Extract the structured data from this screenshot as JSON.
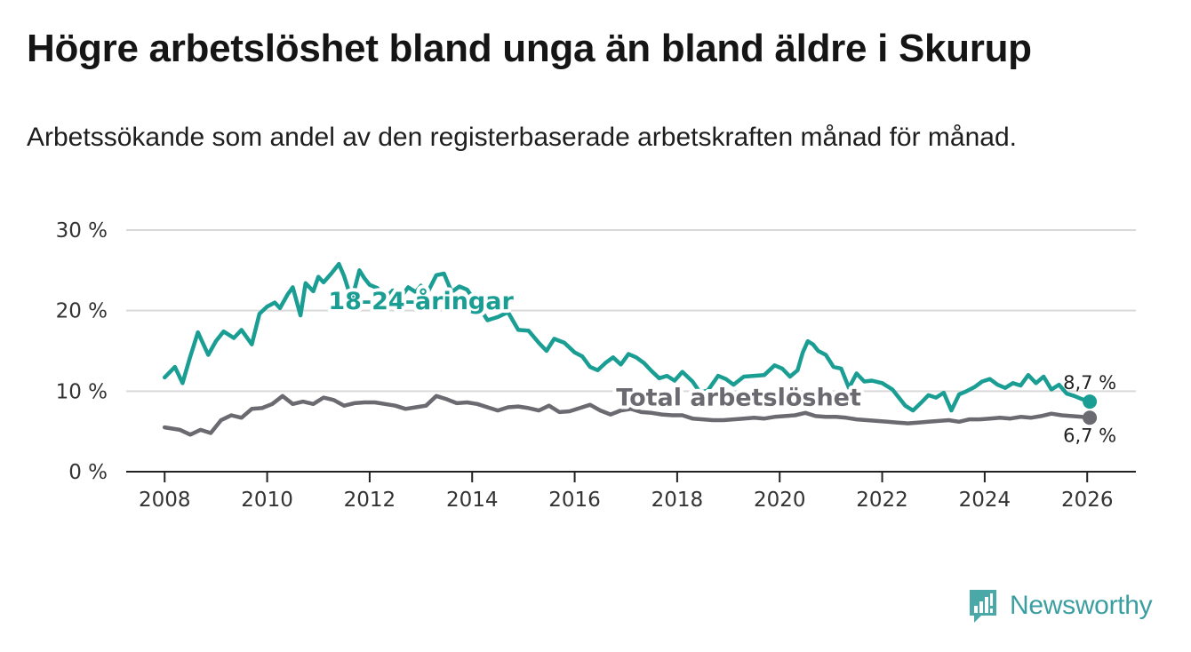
{
  "header": {
    "title": "Högre arbetslöshet bland unga än bland äldre i Skurup",
    "subtitle": "Arbetssökande som andel av den registerbaserade arbetskraften månad för månad."
  },
  "brand": {
    "name": "Newsworthy",
    "icon": "newsworthy-logo-icon",
    "color": "#3b9ea0"
  },
  "chart_data": {
    "type": "line",
    "title": "Högre arbetslöshet bland unga än bland äldre i Skurup",
    "xlabel": "",
    "ylabel": "",
    "xlim": [
      2007.25,
      2026.95
    ],
    "ylim": [
      0,
      30
    ],
    "grid": true,
    "y_ticks": [
      {
        "value": 0,
        "label": "0 %"
      },
      {
        "value": 10,
        "label": "10 %"
      },
      {
        "value": 20,
        "label": "20 %"
      },
      {
        "value": 30,
        "label": "30 %"
      }
    ],
    "x_ticks": [
      {
        "value": 2008,
        "label": "2008"
      },
      {
        "value": 2010,
        "label": "2010"
      },
      {
        "value": 2012,
        "label": "2012"
      },
      {
        "value": 2014,
        "label": "2014"
      },
      {
        "value": 2016,
        "label": "2016"
      },
      {
        "value": 2018,
        "label": "2018"
      },
      {
        "value": 2020,
        "label": "2020"
      },
      {
        "value": 2022,
        "label": "2022"
      },
      {
        "value": 2024,
        "label": "2024"
      },
      {
        "value": 2026,
        "label": "2026"
      }
    ],
    "series": [
      {
        "name": "18-24-åringar",
        "label": "18-24-åringar",
        "color": "#1a9e94",
        "label_anchor": [
          2013.0,
          20.2
        ],
        "end_label": "8,7 %",
        "x": [
          2008.0,
          2008.2,
          2008.35,
          2008.5,
          2008.65,
          2008.85,
          2009.0,
          2009.15,
          2009.35,
          2009.5,
          2009.7,
          2009.85,
          2010.0,
          2010.15,
          2010.25,
          2010.4,
          2010.5,
          2010.65,
          2010.75,
          2010.9,
          2011.0,
          2011.1,
          2011.25,
          2011.4,
          2011.5,
          2011.65,
          2011.8,
          2011.9,
          2012.0,
          2012.15,
          2012.3,
          2012.45,
          2012.6,
          2012.75,
          2012.9,
          2013.0,
          2013.15,
          2013.3,
          2013.45,
          2013.6,
          2013.75,
          2013.9,
          2014.1,
          2014.3,
          2014.5,
          2014.7,
          2014.9,
          2015.1,
          2015.3,
          2015.45,
          2015.6,
          2015.8,
          2016.0,
          2016.15,
          2016.3,
          2016.45,
          2016.6,
          2016.75,
          2016.9,
          2017.05,
          2017.2,
          2017.35,
          2017.5,
          2017.65,
          2017.8,
          2017.95,
          2018.1,
          2018.3,
          2018.45,
          2018.6,
          2018.8,
          2018.95,
          2019.1,
          2019.3,
          2019.5,
          2019.7,
          2019.9,
          2020.05,
          2020.2,
          2020.35,
          2020.45,
          2020.55,
          2020.65,
          2020.75,
          2020.9,
          2021.05,
          2021.2,
          2021.35,
          2021.5,
          2021.65,
          2021.8,
          2022.0,
          2022.2,
          2022.45,
          2022.6,
          2022.75,
          2022.9,
          2023.05,
          2023.2,
          2023.35,
          2023.5,
          2023.65,
          2023.8,
          2023.95,
          2024.1,
          2024.25,
          2024.4,
          2024.55,
          2024.7,
          2024.85,
          2025.0,
          2025.15,
          2025.3,
          2025.45,
          2025.6,
          2025.75,
          2025.9,
          2026.05
        ],
        "values": [
          11.7,
          13.0,
          11.0,
          14.3,
          17.3,
          14.5,
          16.2,
          17.4,
          16.6,
          17.6,
          15.8,
          19.6,
          20.5,
          21.0,
          20.3,
          22.0,
          22.9,
          19.4,
          23.4,
          22.4,
          24.2,
          23.5,
          24.6,
          25.8,
          24.3,
          21.3,
          25.0,
          24.0,
          23.2,
          22.8,
          21.5,
          22.5,
          21.6,
          22.9,
          22.3,
          23.1,
          22.5,
          24.4,
          24.6,
          22.3,
          23.0,
          22.6,
          20.8,
          18.8,
          19.2,
          19.8,
          17.6,
          17.5,
          16.0,
          15.0,
          16.5,
          16.0,
          14.8,
          14.3,
          13.0,
          12.6,
          13.5,
          14.2,
          13.3,
          14.6,
          14.2,
          13.5,
          12.5,
          11.6,
          11.9,
          11.3,
          12.4,
          11.2,
          9.8,
          10.1,
          11.9,
          11.5,
          10.8,
          11.8,
          11.9,
          12.0,
          13.2,
          12.8,
          11.8,
          12.6,
          14.8,
          16.2,
          15.8,
          15.0,
          14.5,
          13.0,
          12.8,
          10.4,
          12.2,
          11.2,
          11.3,
          11.0,
          10.2,
          8.2,
          7.6,
          8.5,
          9.5,
          9.2,
          9.8,
          7.6,
          9.6,
          10.0,
          10.5,
          11.2,
          11.5,
          10.8,
          10.4,
          11.0,
          10.7,
          12.0,
          11.0,
          11.8,
          10.2,
          10.8,
          9.7,
          9.4,
          9.0,
          8.7
        ]
      },
      {
        "name": "Total arbetslöshet",
        "label": "Total arbetslöshet",
        "color": "#6b6a70",
        "label_anchor": [
          2019.2,
          8.2
        ],
        "end_label": "6,7 %",
        "x": [
          2008.0,
          2008.3,
          2008.5,
          2008.7,
          2008.9,
          2009.1,
          2009.3,
          2009.5,
          2009.7,
          2009.9,
          2010.1,
          2010.3,
          2010.5,
          2010.7,
          2010.9,
          2011.1,
          2011.3,
          2011.5,
          2011.7,
          2011.9,
          2012.1,
          2012.3,
          2012.5,
          2012.7,
          2012.9,
          2013.1,
          2013.3,
          2013.5,
          2013.7,
          2013.9,
          2014.1,
          2014.3,
          2014.5,
          2014.7,
          2014.9,
          2015.1,
          2015.3,
          2015.5,
          2015.7,
          2015.9,
          2016.1,
          2016.3,
          2016.5,
          2016.7,
          2016.9,
          2017.1,
          2017.3,
          2017.5,
          2017.7,
          2017.9,
          2018.1,
          2018.3,
          2018.5,
          2018.7,
          2018.9,
          2019.1,
          2019.3,
          2019.5,
          2019.7,
          2019.9,
          2020.1,
          2020.3,
          2020.5,
          2020.7,
          2020.9,
          2021.1,
          2021.3,
          2021.5,
          2021.7,
          2021.9,
          2022.1,
          2022.3,
          2022.5,
          2022.7,
          2022.9,
          2023.1,
          2023.3,
          2023.5,
          2023.7,
          2023.9,
          2024.1,
          2024.3,
          2024.5,
          2024.7,
          2024.9,
          2025.1,
          2025.3,
          2025.5,
          2025.7,
          2025.9,
          2026.05
        ],
        "values": [
          5.5,
          5.2,
          4.6,
          5.2,
          4.8,
          6.4,
          7.0,
          6.7,
          7.8,
          7.9,
          8.4,
          9.4,
          8.4,
          8.7,
          8.4,
          9.2,
          8.9,
          8.2,
          8.5,
          8.6,
          8.6,
          8.4,
          8.2,
          7.8,
          8.0,
          8.2,
          9.4,
          9.0,
          8.5,
          8.6,
          8.4,
          8.0,
          7.6,
          8.0,
          8.1,
          7.9,
          7.6,
          8.2,
          7.4,
          7.5,
          7.9,
          8.3,
          7.6,
          7.1,
          7.6,
          7.8,
          7.4,
          7.3,
          7.1,
          7.0,
          7.0,
          6.6,
          6.5,
          6.4,
          6.4,
          6.5,
          6.6,
          6.7,
          6.6,
          6.8,
          6.9,
          7.0,
          7.3,
          6.9,
          6.8,
          6.8,
          6.7,
          6.5,
          6.4,
          6.3,
          6.2,
          6.1,
          6.0,
          6.1,
          6.2,
          6.3,
          6.4,
          6.2,
          6.5,
          6.5,
          6.6,
          6.7,
          6.6,
          6.8,
          6.7,
          6.9,
          7.2,
          7.0,
          6.9,
          6.8,
          6.7
        ]
      }
    ]
  }
}
